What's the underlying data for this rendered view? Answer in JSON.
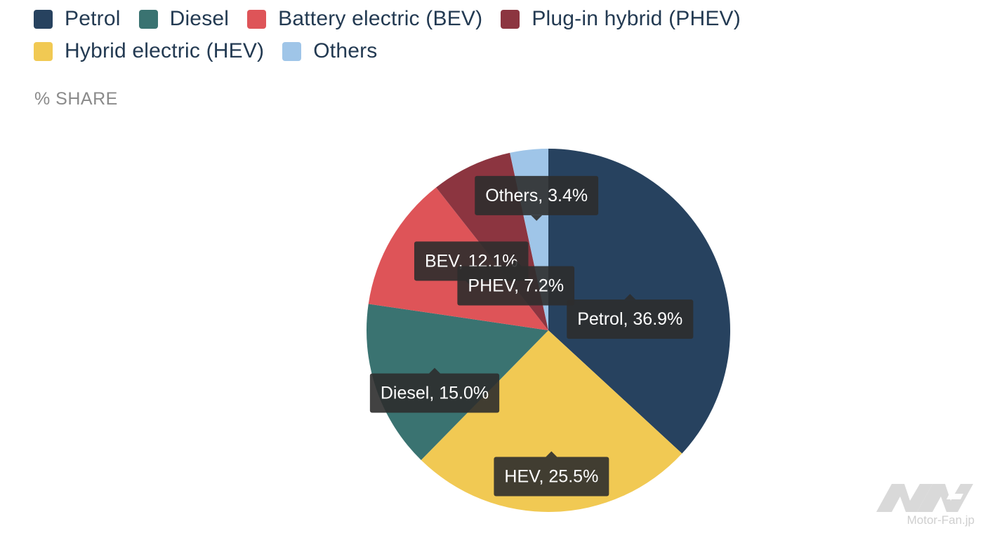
{
  "chart_data": {
    "type": "pie",
    "title": "",
    "subtitle": "% SHARE",
    "legend_position": "top-left",
    "slices": [
      {
        "name": "Petrol",
        "label": "Petrol, 36.9%",
        "value": 36.9,
        "color": "#27425f"
      },
      {
        "name": "Hybrid electric (HEV)",
        "label": "HEV, 25.5%",
        "value": 25.5,
        "color": "#f1c953"
      },
      {
        "name": "Diesel",
        "label": "Diesel, 15.0%",
        "value": 15.0,
        "color": "#3a7371"
      },
      {
        "name": "Battery electric (BEV)",
        "label": "BEV, 12.1%",
        "value": 12.1,
        "color": "#de5458"
      },
      {
        "name": "Plug-in hybrid (PHEV)",
        "label": "PHEV, 7.2%",
        "value": 7.2,
        "color": "#8c3540"
      },
      {
        "name": "Others",
        "label": "Others, 3.4%",
        "value": 3.4,
        "color": "#9fc5e8"
      }
    ],
    "legend": [
      {
        "name": "Petrol",
        "color": "#27425f"
      },
      {
        "name": "Diesel",
        "color": "#3a7371"
      },
      {
        "name": "Battery electric (BEV)",
        "color": "#de5458"
      },
      {
        "name": "Plug-in hybrid (PHEV)",
        "color": "#8c3540"
      },
      {
        "name": "Hybrid electric (HEV)",
        "color": "#f1c953"
      },
      {
        "name": "Others",
        "color": "#9fc5e8"
      }
    ]
  },
  "watermark": {
    "text": "Motor-Fan.jp"
  }
}
